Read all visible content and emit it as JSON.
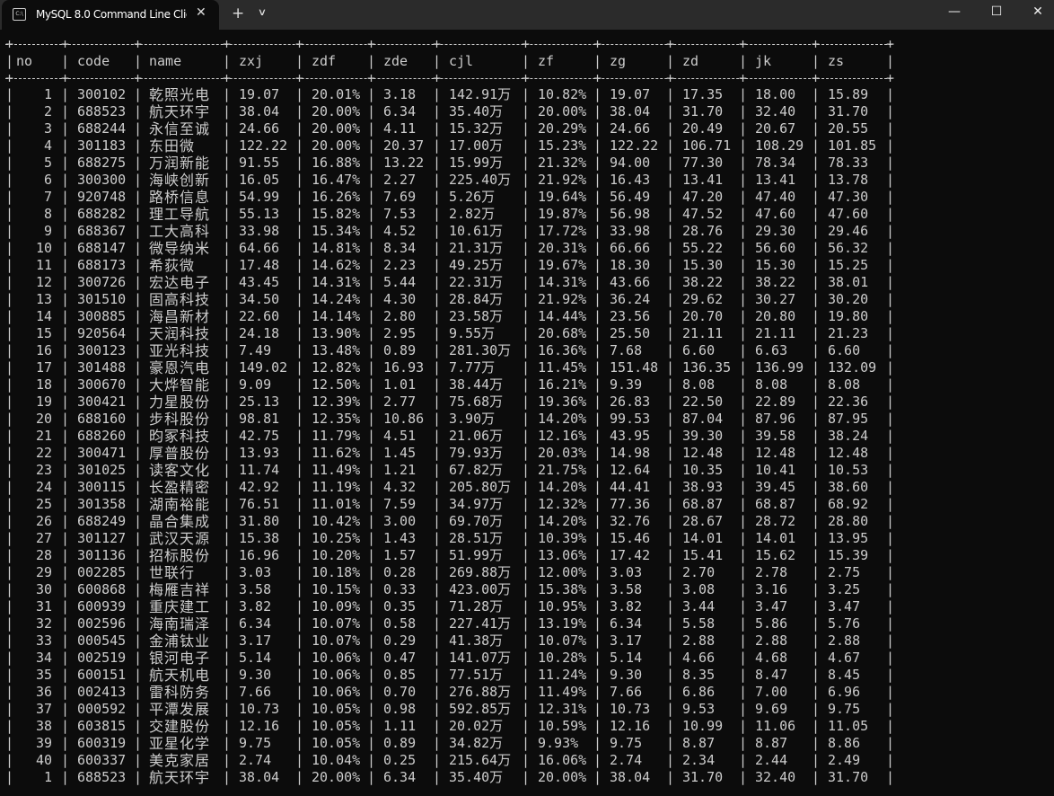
{
  "window": {
    "tab_title": "MySQL 8.0 Command Line Clie",
    "tab_icon": "console-icon",
    "new_tab_label": "+",
    "controls": [
      "minimize-icon",
      "maximize-icon",
      "close-icon"
    ]
  },
  "table": {
    "headers": [
      "no",
      "code",
      "name",
      "zxj",
      "zdf",
      "zde",
      "cjl",
      "zf",
      "zg",
      "zd",
      "jk",
      "zs"
    ],
    "rows": [
      [
        "1",
        "300102",
        "乾照光电",
        "19.07",
        "20.01%",
        "3.18",
        "142.91万",
        "10.82%",
        "19.07",
        "17.35",
        "18.00",
        "15.89"
      ],
      [
        "2",
        "688523",
        "航天环宇",
        "38.04",
        "20.00%",
        "6.34",
        "35.40万",
        "20.00%",
        "38.04",
        "31.70",
        "32.40",
        "31.70"
      ],
      [
        "3",
        "688244",
        "永信至诚",
        "24.66",
        "20.00%",
        "4.11",
        "15.32万",
        "20.29%",
        "24.66",
        "20.49",
        "20.67",
        "20.55"
      ],
      [
        "4",
        "301183",
        "东田微",
        "122.22",
        "20.00%",
        "20.37",
        "17.00万",
        "15.23%",
        "122.22",
        "106.71",
        "108.29",
        "101.85"
      ],
      [
        "5",
        "688275",
        "万润新能",
        "91.55",
        "16.88%",
        "13.22",
        "15.99万",
        "21.32%",
        "94.00",
        "77.30",
        "78.34",
        "78.33"
      ],
      [
        "6",
        "300300",
        "海峡创新",
        "16.05",
        "16.47%",
        "2.27",
        "225.40万",
        "21.92%",
        "16.43",
        "13.41",
        "13.41",
        "13.78"
      ],
      [
        "7",
        "920748",
        "路桥信息",
        "54.99",
        "16.26%",
        "7.69",
        "5.26万",
        "19.64%",
        "56.49",
        "47.20",
        "47.40",
        "47.30"
      ],
      [
        "8",
        "688282",
        "理工导航",
        "55.13",
        "15.82%",
        "7.53",
        "2.82万",
        "19.87%",
        "56.98",
        "47.52",
        "47.60",
        "47.60"
      ],
      [
        "9",
        "688367",
        "工大高科",
        "33.98",
        "15.34%",
        "4.52",
        "10.61万",
        "17.72%",
        "33.98",
        "28.76",
        "29.30",
        "29.46"
      ],
      [
        "10",
        "688147",
        "微导纳米",
        "64.66",
        "14.81%",
        "8.34",
        "21.31万",
        "20.31%",
        "66.66",
        "55.22",
        "56.60",
        "56.32"
      ],
      [
        "11",
        "688173",
        "希荻微",
        "17.48",
        "14.62%",
        "2.23",
        "49.25万",
        "19.67%",
        "18.30",
        "15.30",
        "15.30",
        "15.25"
      ],
      [
        "12",
        "300726",
        "宏达电子",
        "43.45",
        "14.31%",
        "5.44",
        "22.31万",
        "14.31%",
        "43.66",
        "38.22",
        "38.22",
        "38.01"
      ],
      [
        "13",
        "301510",
        "固高科技",
        "34.50",
        "14.24%",
        "4.30",
        "28.84万",
        "21.92%",
        "36.24",
        "29.62",
        "30.27",
        "30.20"
      ],
      [
        "14",
        "300885",
        "海昌新材",
        "22.60",
        "14.14%",
        "2.80",
        "23.58万",
        "14.44%",
        "23.56",
        "20.70",
        "20.80",
        "19.80"
      ],
      [
        "15",
        "920564",
        "天润科技",
        "24.18",
        "13.90%",
        "2.95",
        "9.55万",
        "20.68%",
        "25.50",
        "21.11",
        "21.11",
        "21.23"
      ],
      [
        "16",
        "300123",
        "亚光科技",
        "7.49",
        "13.48%",
        "0.89",
        "281.30万",
        "16.36%",
        "7.68",
        "6.60",
        "6.63",
        "6.60"
      ],
      [
        "17",
        "301488",
        "豪恩汽电",
        "149.02",
        "12.82%",
        "16.93",
        "7.77万",
        "11.45%",
        "151.48",
        "136.35",
        "136.99",
        "132.09"
      ],
      [
        "18",
        "300670",
        "大烨智能",
        "9.09",
        "12.50%",
        "1.01",
        "38.44万",
        "16.21%",
        "9.39",
        "8.08",
        "8.08",
        "8.08"
      ],
      [
        "19",
        "300421",
        "力星股份",
        "25.13",
        "12.39%",
        "2.77",
        "75.68万",
        "19.36%",
        "26.83",
        "22.50",
        "22.89",
        "22.36"
      ],
      [
        "20",
        "688160",
        "步科股份",
        "98.81",
        "12.35%",
        "10.86",
        "3.90万",
        "14.20%",
        "99.53",
        "87.04",
        "87.96",
        "87.95"
      ],
      [
        "21",
        "688260",
        "昀冢科技",
        "42.75",
        "11.79%",
        "4.51",
        "21.06万",
        "12.16%",
        "43.95",
        "39.30",
        "39.58",
        "38.24"
      ],
      [
        "22",
        "300471",
        "厚普股份",
        "13.93",
        "11.62%",
        "1.45",
        "79.93万",
        "20.03%",
        "14.98",
        "12.48",
        "12.48",
        "12.48"
      ],
      [
        "23",
        "301025",
        "读客文化",
        "11.74",
        "11.49%",
        "1.21",
        "67.82万",
        "21.75%",
        "12.64",
        "10.35",
        "10.41",
        "10.53"
      ],
      [
        "24",
        "300115",
        "长盈精密",
        "42.92",
        "11.19%",
        "4.32",
        "205.80万",
        "14.20%",
        "44.41",
        "38.93",
        "39.45",
        "38.60"
      ],
      [
        "25",
        "301358",
        "湖南裕能",
        "76.51",
        "11.01%",
        "7.59",
        "34.97万",
        "12.32%",
        "77.36",
        "68.87",
        "68.87",
        "68.92"
      ],
      [
        "26",
        "688249",
        "晶合集成",
        "31.80",
        "10.42%",
        "3.00",
        "69.70万",
        "14.20%",
        "32.76",
        "28.67",
        "28.72",
        "28.80"
      ],
      [
        "27",
        "301127",
        "武汉天源",
        "15.38",
        "10.25%",
        "1.43",
        "28.51万",
        "10.39%",
        "15.46",
        "14.01",
        "14.01",
        "13.95"
      ],
      [
        "28",
        "301136",
        "招标股份",
        "16.96",
        "10.20%",
        "1.57",
        "51.99万",
        "13.06%",
        "17.42",
        "15.41",
        "15.62",
        "15.39"
      ],
      [
        "29",
        "002285",
        "世联行",
        "3.03",
        "10.18%",
        "0.28",
        "269.88万",
        "12.00%",
        "3.03",
        "2.70",
        "2.78",
        "2.75"
      ],
      [
        "30",
        "600868",
        "梅雁吉祥",
        "3.58",
        "10.15%",
        "0.33",
        "423.00万",
        "15.38%",
        "3.58",
        "3.08",
        "3.16",
        "3.25"
      ],
      [
        "31",
        "600939",
        "重庆建工",
        "3.82",
        "10.09%",
        "0.35",
        "71.28万",
        "10.95%",
        "3.82",
        "3.44",
        "3.47",
        "3.47"
      ],
      [
        "32",
        "002596",
        "海南瑞泽",
        "6.34",
        "10.07%",
        "0.58",
        "227.41万",
        "13.19%",
        "6.34",
        "5.58",
        "5.86",
        "5.76"
      ],
      [
        "33",
        "000545",
        "金浦钛业",
        "3.17",
        "10.07%",
        "0.29",
        "41.38万",
        "10.07%",
        "3.17",
        "2.88",
        "2.88",
        "2.88"
      ],
      [
        "34",
        "002519",
        "银河电子",
        "5.14",
        "10.06%",
        "0.47",
        "141.07万",
        "10.28%",
        "5.14",
        "4.66",
        "4.68",
        "4.67"
      ],
      [
        "35",
        "600151",
        "航天机电",
        "9.30",
        "10.06%",
        "0.85",
        "77.51万",
        "11.24%",
        "9.30",
        "8.35",
        "8.47",
        "8.45"
      ],
      [
        "36",
        "002413",
        "雷科防务",
        "7.66",
        "10.06%",
        "0.70",
        "276.88万",
        "11.49%",
        "7.66",
        "6.86",
        "7.00",
        "6.96"
      ],
      [
        "37",
        "000592",
        "平潭发展",
        "10.73",
        "10.05%",
        "0.98",
        "592.85万",
        "12.31%",
        "10.73",
        "9.53",
        "9.69",
        "9.75"
      ],
      [
        "38",
        "603815",
        "交建股份",
        "12.16",
        "10.05%",
        "1.11",
        "20.02万",
        "10.59%",
        "12.16",
        "10.99",
        "11.06",
        "11.05"
      ],
      [
        "39",
        "600319",
        "亚星化学",
        "9.75",
        "10.05%",
        "0.89",
        "34.82万",
        "9.93%",
        "9.75",
        "8.87",
        "8.87",
        "8.86"
      ],
      [
        "40",
        "600337",
        "美克家居",
        "2.74",
        "10.04%",
        "0.25",
        "215.64万",
        "16.06%",
        "2.74",
        "2.34",
        "2.44",
        "2.49"
      ],
      [
        "1",
        "688523",
        "航天环宇",
        "38.04",
        "20.00%",
        "6.34",
        "35.40万",
        "20.00%",
        "38.04",
        "31.70",
        "32.40",
        "31.70"
      ]
    ]
  }
}
